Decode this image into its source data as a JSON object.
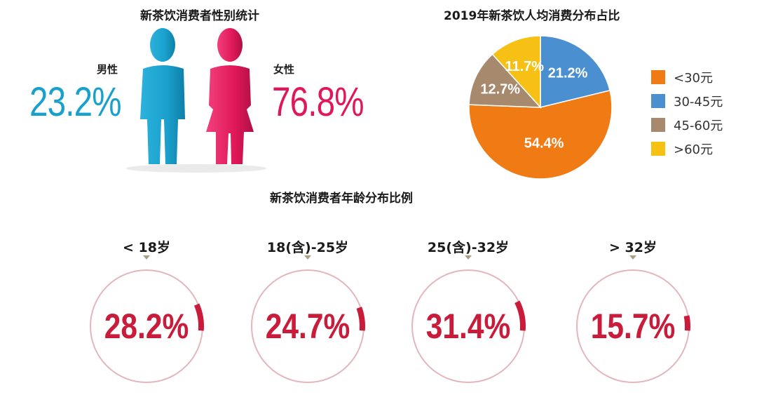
{
  "chart_data": [
    {
      "type": "bar",
      "title": "新茶饮消费者性别统计",
      "categories": [
        "男性",
        "女性"
      ],
      "values": [
        23.2,
        76.8
      ],
      "value_labels": [
        "23.2%",
        "76.8%"
      ],
      "colors": [
        "#1aa0cc",
        "#e0185a"
      ]
    },
    {
      "type": "pie",
      "title": "2019年新茶饮人均消费分布占比",
      "categories": [
        "<30元",
        "30-45元",
        "45-60元",
        ">60元"
      ],
      "values": [
        54.4,
        21.2,
        12.7,
        11.7
      ],
      "value_labels": [
        "54.4%",
        "21.2%",
        "12.7%",
        "11.7%"
      ],
      "colors": [
        "#f07b14",
        "#4a8fd0",
        "#a78a6d",
        "#f6c014"
      ],
      "legend_labels": [
        "<30元",
        "30-45元",
        "45-60元",
        ">60元"
      ],
      "legend_position": "right"
    },
    {
      "type": "pie",
      "title": "新茶饮消费者年龄分布比例",
      "categories": [
        "<18岁",
        "18(含)-25岁",
        "25(含)-32岁",
        ">32岁"
      ],
      "values": [
        28.2,
        24.7,
        31.4,
        15.7
      ],
      "value_labels": [
        "28.2%",
        "24.7%",
        "31.4%",
        "15.7%"
      ],
      "display_labels": [
        "< 18岁",
        "18(含)-25岁",
        "25(含)-32岁",
        "> 32岁"
      ],
      "colors": [
        "#c81c3a"
      ]
    }
  ],
  "icons": [
    "male-figure-icon",
    "female-figure-icon"
  ]
}
